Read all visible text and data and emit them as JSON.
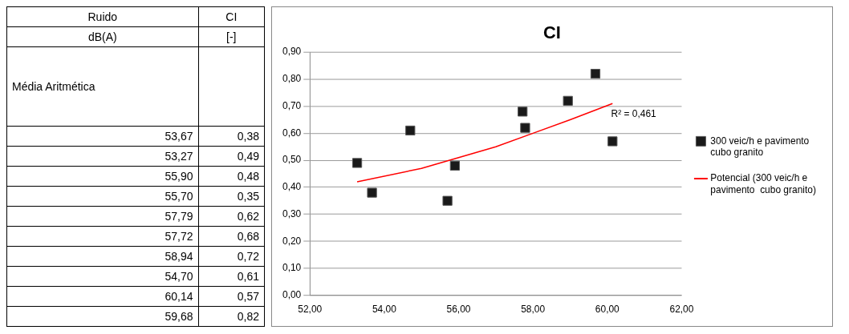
{
  "chart_data": [
    {
      "type": "other",
      "annotations": [
        "Ruido",
        "CI",
        "dB(A)",
        "[-]",
        "Média Aritmética",
        "53,67",
        "0,38",
        "53,27",
        "0,49",
        "55,90",
        "0,48",
        "55,70",
        "0,35",
        "57,79",
        "0,62",
        "57,72",
        "0,68",
        "58,94",
        "0,72",
        "54,70",
        "0,61",
        "60,14",
        "0,57",
        "59,68",
        "0,82"
      ]
    },
    {
      "type": "scatter",
      "title": "CI",
      "series": [
        {
          "name": "300 veic/h e pavimento cubo granito",
          "type": "scatter",
          "color": "#1a1a1a",
          "marker": "square",
          "x": [
            53.67,
            53.27,
            55.9,
            55.7,
            57.79,
            57.72,
            58.94,
            54.7,
            60.14,
            59.68
          ],
          "values": [
            0.38,
            0.49,
            0.48,
            0.35,
            0.62,
            0.68,
            0.72,
            0.61,
            0.57,
            0.82
          ]
        },
        {
          "name": "Potencial (300 veic/h e pavimento  cubo granito)",
          "type": "line",
          "color": "#ff0000",
          "marker": "none",
          "line_style": "solid",
          "x": [
            53.27,
            55,
            56,
            57,
            58,
            59,
            60.14
          ],
          "values": [
            0.42,
            0.47,
            0.51,
            0.55,
            0.6,
            0.65,
            0.71
          ]
        }
      ],
      "annotations": [
        "R² = 0,461"
      ],
      "xlim": [
        52,
        62
      ],
      "xticks": [
        {
          "value": 52,
          "label": "52,00"
        },
        {
          "value": 54,
          "label": "54,00"
        },
        {
          "value": 56,
          "label": "56,00"
        },
        {
          "value": 58,
          "label": "58,00"
        },
        {
          "value": 60,
          "label": "60,00"
        },
        {
          "value": 62,
          "label": "62,00"
        }
      ],
      "ylim": [
        0,
        0.9
      ],
      "yticks": [
        {
          "value": 0,
          "label": "0,00"
        },
        {
          "value": 0.1,
          "label": "0,10"
        },
        {
          "value": 0.2,
          "label": "0,20"
        },
        {
          "value": 0.3,
          "label": "0,30"
        },
        {
          "value": 0.4,
          "label": "0,40"
        },
        {
          "value": 0.5,
          "label": "0,50"
        },
        {
          "value": 0.6,
          "label": "0,60"
        },
        {
          "value": 0.7,
          "label": "0,70"
        },
        {
          "value": 0.8,
          "label": "0,80"
        },
        {
          "value": 0.9,
          "label": "0,90"
        }
      ],
      "grid": "y",
      "legend": "right"
    }
  ]
}
